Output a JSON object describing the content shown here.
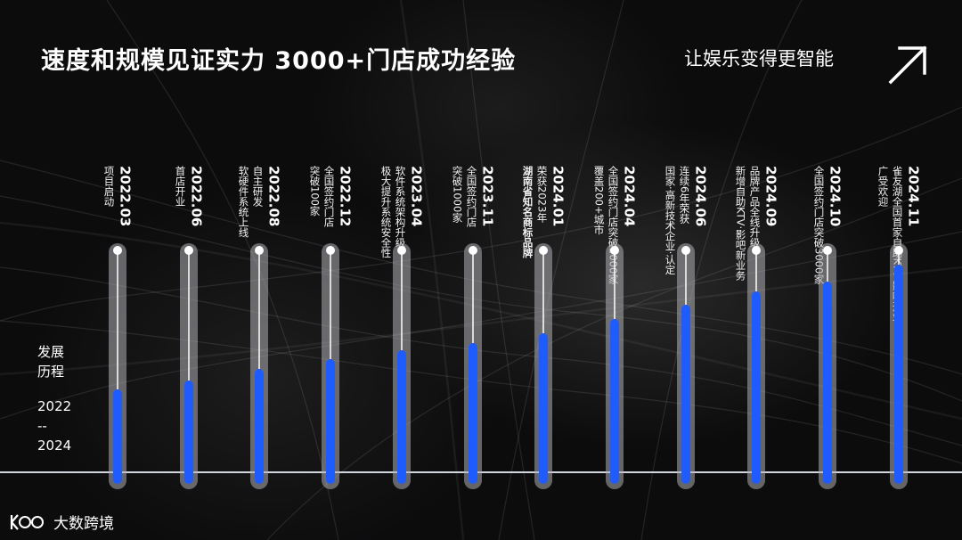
{
  "header": {
    "title": "速度和规模见证实力  3000+门店成功经验",
    "slogan": "让娱乐变得更智能"
  },
  "side": {
    "label_line1": "发展",
    "label_line2": "历程",
    "range_start": "2022",
    "range_sep": "--",
    "range_end": "2024"
  },
  "brand": {
    "name": "大数跨境"
  },
  "accent_color": "#1f5cff",
  "milestones": [
    {
      "date": "2022.03",
      "lines": [
        "项目启动"
      ],
      "progress": 0.4
    },
    {
      "date": "2022.06",
      "lines": [
        "首店开业"
      ],
      "progress": 0.44
    },
    {
      "date": "2022.08",
      "lines": [
        "自主研发",
        "软硬件系统上线"
      ],
      "progress": 0.49
    },
    {
      "date": "2022.12",
      "lines": [
        "全国签约门店",
        "突破100家"
      ],
      "progress": 0.53
    },
    {
      "date": "2023.04",
      "lines": [
        "软件系统架构升级",
        "极大提升系统安全性"
      ],
      "progress": 0.57
    },
    {
      "date": "2023.11",
      "lines": [
        "全国签约门店",
        "突破1000家"
      ],
      "progress": 0.6
    },
    {
      "date": "2024.01",
      "lines": [
        "荣获2023年",
        "湖南省知名商标品牌"
      ],
      "progress": 0.64
    },
    {
      "date": "2024.04",
      "lines": [
        "全国签约门店突破2000家",
        "覆盖200+城市"
      ],
      "progress": 0.7
    },
    {
      "date": "2024.06",
      "lines": [
        "连续6年荣获",
        "国家·高新技术企业·认定"
      ],
      "progress": 0.76
    },
    {
      "date": "2024.09",
      "lines": [
        "品牌产品全线升级",
        "新增自助KTV·影吧新业务"
      ],
      "progress": 0.82
    },
    {
      "date": "2024.10",
      "lines": [
        "全国签约门店突破3000家"
      ],
      "progress": 0.86
    },
    {
      "date": "2024.11",
      "lines": [
        "雀友湖全国首家自助KTV·影吧开业",
        "广受欢迎"
      ],
      "progress": 0.93
    }
  ]
}
